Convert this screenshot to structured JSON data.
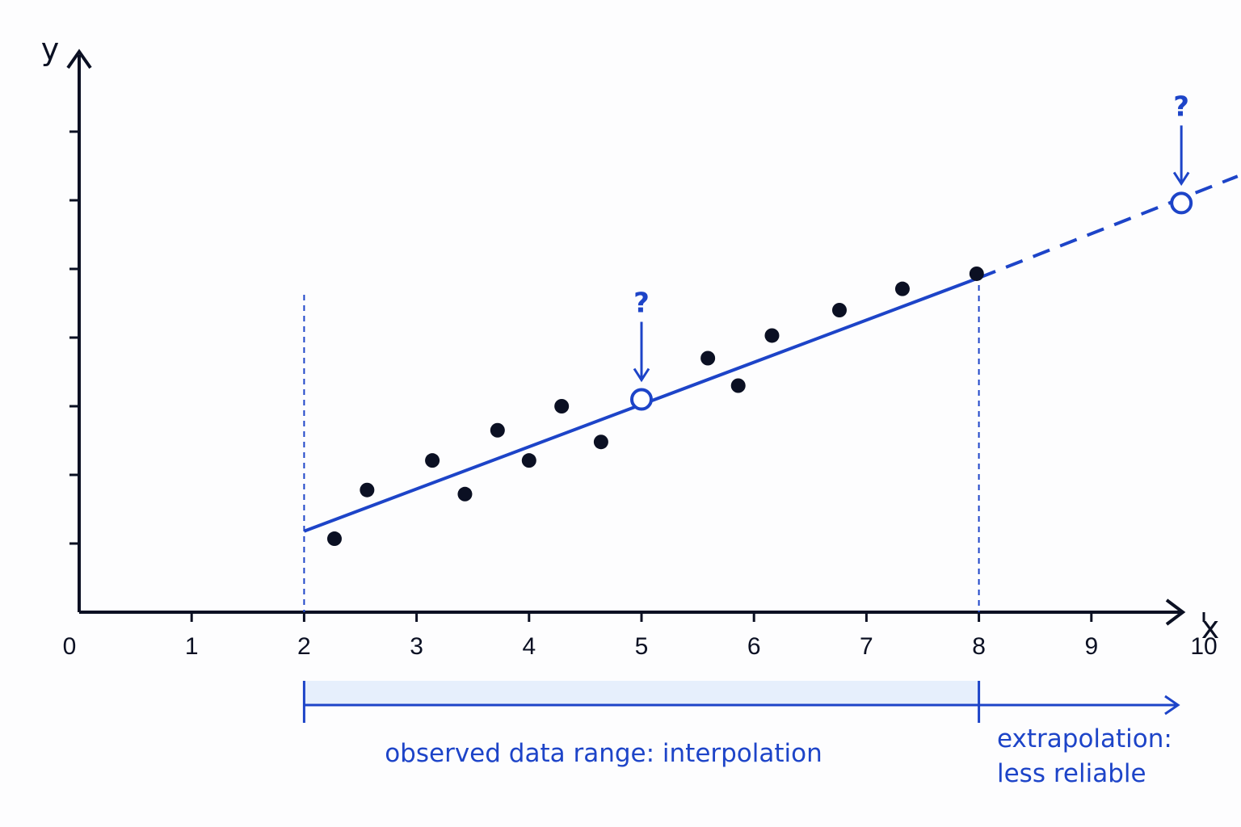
{
  "chart_data": {
    "type": "scatter",
    "title": "",
    "xlabel": "x",
    "ylabel": "y",
    "x_ticks": [
      "0",
      "1",
      "2",
      "3",
      "4",
      "5",
      "6",
      "7",
      "8",
      "9",
      "10"
    ],
    "xlim": [
      0,
      10.3
    ],
    "ylim": [
      0,
      8.1
    ],
    "y_tick_count": 7,
    "grid": false,
    "points": [
      {
        "x": 2.27,
        "y": 1.07
      },
      {
        "x": 2.56,
        "y": 1.78
      },
      {
        "x": 3.14,
        "y": 2.21
      },
      {
        "x": 3.43,
        "y": 1.72
      },
      {
        "x": 3.72,
        "y": 2.65
      },
      {
        "x": 4.0,
        "y": 2.21
      },
      {
        "x": 4.29,
        "y": 3.0
      },
      {
        "x": 4.64,
        "y": 2.48
      },
      {
        "x": 5.59,
        "y": 3.7
      },
      {
        "x": 5.86,
        "y": 3.3
      },
      {
        "x": 6.16,
        "y": 4.03
      },
      {
        "x": 6.76,
        "y": 4.4
      },
      {
        "x": 7.32,
        "y": 4.71
      },
      {
        "x": 7.98,
        "y": 4.93
      }
    ],
    "fit_line": {
      "x_start": 2.0,
      "y_start": 1.18,
      "x_end": 8.0,
      "y_end": 4.87
    },
    "extrapolation_line": {
      "x_start": 8.0,
      "y_start": 4.87,
      "x_end": 10.3,
      "y_end": 6.35,
      "style": "dashed"
    },
    "predicted_points": [
      {
        "x": 5.0,
        "y": 3.1,
        "label": "?"
      },
      {
        "x": 9.8,
        "y": 5.96,
        "label": "?"
      }
    ],
    "observed_range": [
      2,
      8
    ],
    "annotations": {
      "interpolation": "observed data range: interpolation",
      "extrapolation_line1": "extrapolation:",
      "extrapolation_line2": "less reliable"
    },
    "colors": {
      "axis": "#0b1023",
      "points": "#0b1023",
      "accent": "#1d44c8",
      "range_fill": "#e6effc"
    }
  }
}
